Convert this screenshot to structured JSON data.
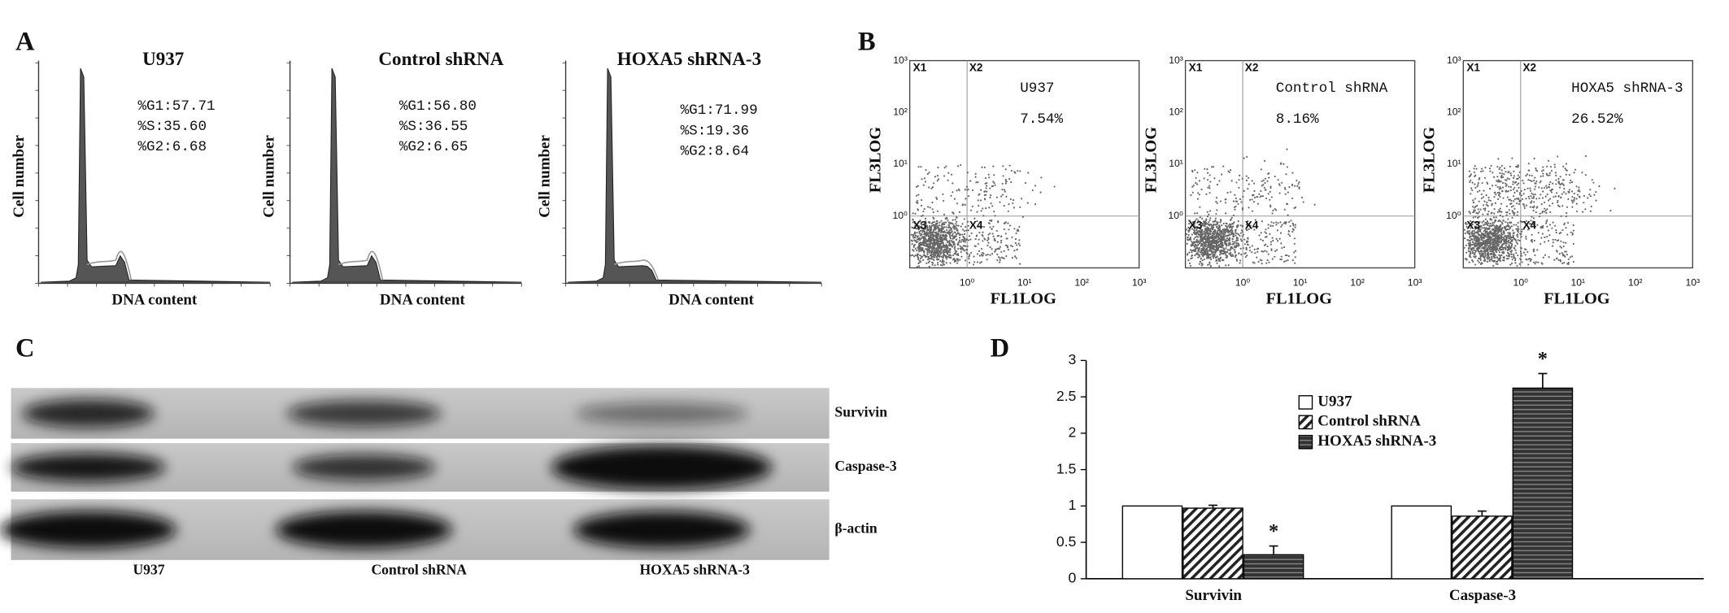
{
  "panels": {
    "A": {
      "letter": "A",
      "xlabel": "DNA content",
      "ylabel": "Cell number",
      "plots": [
        {
          "title": "U937",
          "stats": [
            "%G1:57.71",
            "%S:35.60",
            "%G2:6.68"
          ]
        },
        {
          "title": "Control shRNA",
          "stats": [
            "%G1:56.80",
            "%S:36.55",
            "%G2:6.65"
          ]
        },
        {
          "title": "HOXA5 shRNA-3",
          "stats": [
            "%G1:71.99",
            "%S:19.36",
            "%G2:8.64"
          ]
        }
      ]
    },
    "B": {
      "letter": "B",
      "xlabel": "FL1LOG",
      "ylabel": "FL3LOG",
      "ticks": [
        "10⁰",
        "10¹",
        "10²",
        "10³"
      ],
      "quadrants": [
        "X1",
        "X2",
        "X3",
        "X4"
      ],
      "plots": [
        {
          "title": "U937",
          "percent": "7.54%"
        },
        {
          "title": "Control shRNA",
          "percent": "8.16%"
        },
        {
          "title": "HOXA5 shRNA-3",
          "percent": "26.52%"
        }
      ]
    },
    "C": {
      "letter": "C",
      "bands": [
        "Survivin",
        "Caspase-3",
        "β-actin"
      ],
      "lanes": [
        "U937",
        "Control shRNA",
        "HOXA5 shRNA-3"
      ]
    },
    "D": {
      "letter": "D"
    }
  },
  "chart_data": {
    "type": "bar",
    "categories": [
      "Survivin",
      "Caspase-3"
    ],
    "series": [
      {
        "name": "U937",
        "color": "#ffffff",
        "values": [
          1,
          1
        ]
      },
      {
        "name": "Control shRNA",
        "color": "#ffffff",
        "pattern": "diagonal",
        "values": [
          0.97,
          0.86
        ],
        "errors": [
          0.04,
          0.07
        ]
      },
      {
        "name": "HOXA5 shRNA-3",
        "color": "#333333",
        "pattern": "horizontal",
        "values": [
          0.33,
          2.62
        ],
        "errors": [
          0.12,
          0.2
        ],
        "significance": [
          "*",
          "*"
        ]
      }
    ],
    "ylim": [
      0,
      3
    ],
    "yticks": [
      0,
      0.5,
      1,
      1.5,
      2,
      2.5,
      3
    ]
  }
}
